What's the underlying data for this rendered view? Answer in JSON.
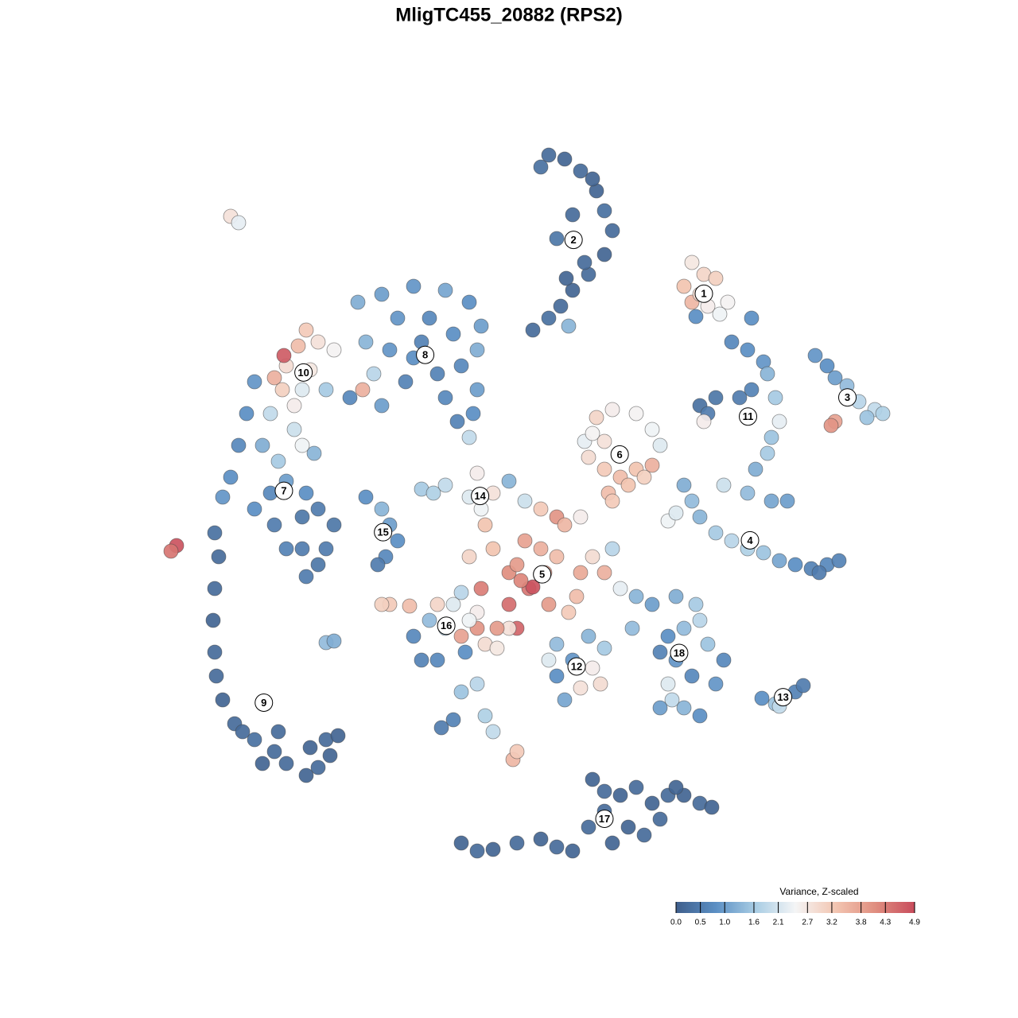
{
  "chart_data": {
    "type": "scatter",
    "title": "MligTC455_20882 (RPS2)",
    "colorbar_title": "Variance, Z-scaled",
    "clim": [
      0,
      4.9
    ],
    "cticks": [
      {
        "value": 0,
        "label": "0.0"
      },
      0.5,
      {
        "value": 1,
        "label": "1.0"
      },
      1.6,
      2.1,
      2.7,
      3.2,
      3.8,
      4.3,
      4.9
    ],
    "colorscale": [
      "#3f5f8c",
      "#5b8fc4",
      "#a9cde4",
      "#f4f5f6",
      "#f3c6b2",
      "#e08f80",
      "#c84c5c"
    ],
    "series": [
      {
        "name": "1",
        "x": [
          870,
          885,
          860,
          890,
          915,
          870,
          880,
          900,
          875,
          905
        ],
        "y": [
          950,
          935,
          920,
          895,
          900,
          900,
          910,
          930,
          882,
          885
        ],
        "values": [
          2.7,
          3.0,
          3.3,
          2.6,
          2.5,
          3.5,
          2.9,
          3.1,
          0.8,
          2.4
        ]
      },
      {
        "name": "2",
        "x": [
          690,
          710,
          730,
          750,
          760,
          770,
          760,
          740,
          720,
          705,
          690,
          670,
          715,
          700,
          720,
          680,
          745,
          735,
          712
        ],
        "y": [
          1085,
          1080,
          1065,
          1040,
          1015,
          990,
          960,
          935,
          915,
          895,
          880,
          865,
          870,
          980,
          1010,
          1070,
          1055,
          950,
          930
        ],
        "values": [
          0.2,
          0.1,
          0.2,
          0.1,
          0.3,
          0.2,
          0.1,
          0.2,
          0.1,
          0.2,
          0.3,
          0.2,
          1.3,
          0.4,
          0.2,
          0.3,
          0.1,
          0.2,
          0.1
        ]
      },
      {
        "name": "3",
        "x": [
          1025,
          1040,
          1050,
          1065,
          1080,
          1100,
          1110,
          1090,
          1050,
          1045
        ],
        "y": [
          833,
          820,
          805,
          795,
          775,
          765,
          760,
          755,
          750,
          745
        ],
        "values": [
          0.9,
          0.8,
          1.0,
          1.4,
          1.8,
          1.9,
          1.7,
          1.5,
          3.8,
          4.0
        ]
      },
      {
        "name": "4",
        "x": [
          860,
          870,
          880,
          900,
          920,
          940,
          960,
          980,
          1000,
          1020,
          1040,
          1055,
          840,
          850,
          1030
        ],
        "y": [
          670,
          650,
          630,
          610,
          600,
          590,
          585,
          575,
          570,
          565,
          570,
          575,
          625,
          635,
          560
        ],
        "values": [
          1.2,
          1.4,
          1.3,
          1.6,
          1.8,
          1.7,
          1.5,
          1.1,
          0.8,
          0.6,
          0.7,
          0.6,
          2.4,
          2.2,
          0.5
        ]
      },
      {
        "name": "5",
        "x": [
          660,
          680,
          700,
          640,
          665,
          690,
          715,
          730,
          745,
          700,
          710,
          620,
          650,
          670,
          640,
          605,
          590,
          760,
          780,
          725,
          655,
          685,
          730,
          770,
          650,
          600,
          640
        ],
        "y": [
          600,
          590,
          580,
          560,
          540,
          520,
          510,
          560,
          580,
          630,
          620,
          590,
          570,
          542,
          520,
          540,
          580,
          560,
          540,
          530,
          550,
          560,
          630,
          590,
          490,
          490,
          490
        ],
        "values": [
          3.8,
          3.6,
          3.4,
          4.1,
          4.4,
          3.9,
          3.2,
          3.7,
          2.9,
          4.0,
          3.5,
          3.3,
          3.9,
          4.8,
          4.5,
          4.3,
          3.0,
          3.6,
          2.3,
          3.4,
          4.2,
          3.8,
          2.6,
          1.8,
          4.6,
          4.0,
          2.8
        ]
      },
      {
        "name": "6",
        "x": [
          750,
          770,
          800,
          820,
          830,
          800,
          780,
          760,
          740,
          735,
          760,
          780,
          810,
          820,
          765,
          770,
          790,
          745
        ],
        "y": [
          755,
          765,
          760,
          740,
          720,
          690,
          680,
          690,
          705,
          725,
          725,
          710,
          680,
          695,
          660,
          650,
          670,
          735
        ],
        "values": [
          3.0,
          2.6,
          2.5,
          2.4,
          2.2,
          3.3,
          3.4,
          3.2,
          2.9,
          2.3,
          2.8,
          3.5,
          3.1,
          3.6,
          3.4,
          3.2,
          3.3,
          2.5
        ]
      },
      {
        "name": "7",
        "x": [
          320,
          310,
          300,
          290,
          280,
          330,
          350,
          380,
          360,
          395,
          385,
          340,
          320,
          370,
          345,
          380,
          400,
          420,
          380,
          400,
          385,
          360,
          410
        ],
        "y": [
          800,
          760,
          720,
          680,
          655,
          720,
          700,
          720,
          675,
          710,
          660,
          660,
          640,
          740,
          620,
          630,
          640,
          620,
          590,
          570,
          555,
          590,
          590
        ],
        "values": [
          0.9,
          0.8,
          0.7,
          0.8,
          0.9,
          1.2,
          1.6,
          2.4,
          1.0,
          1.3,
          0.8,
          0.7,
          0.8,
          2.0,
          0.5,
          0.4,
          0.5,
          0.4,
          0.5,
          0.4,
          0.5,
          0.6,
          0.5
        ]
      },
      {
        "name": "8",
        "x": [
          450,
          480,
          520,
          560,
          590,
          605,
          600,
          580,
          550,
          520,
          490,
          460,
          500,
          540,
          570,
          510,
          560,
          595,
          575,
          600,
          470,
          440,
          480,
          530,
          590
        ],
        "y": [
          900,
          910,
          920,
          915,
          900,
          870,
          840,
          820,
          810,
          830,
          840,
          850,
          880,
          880,
          860,
          800,
          780,
          760,
          750,
          790,
          810,
          780,
          770,
          850,
          730
        ],
        "values": [
          1.2,
          1.0,
          0.9,
          1.1,
          0.8,
          1.0,
          1.2,
          0.7,
          0.6,
          0.8,
          0.9,
          1.3,
          0.9,
          0.7,
          0.8,
          0.6,
          0.7,
          0.8,
          0.6,
          1.0,
          1.8,
          0.7,
          1.0,
          0.6,
          1.9
        ]
      },
      {
        "name": "9",
        "x": [
          270,
          275,
          270,
          268,
          270,
          272,
          280,
          295,
          320,
          345,
          330,
          360,
          390,
          410,
          425,
          400,
          385,
          350,
          305,
          415
        ],
        "y": [
          610,
          580,
          540,
          500,
          460,
          430,
          400,
          370,
          350,
          335,
          320,
          320,
          340,
          350,
          355,
          315,
          305,
          360,
          360,
          330
        ],
        "values": [
          0.3,
          0.2,
          0.2,
          0.1,
          0.2,
          0.2,
          0.1,
          0.2,
          0.3,
          0.2,
          0.1,
          0.2,
          0.1,
          0.2,
          0.1,
          0.2,
          0.1,
          0.2,
          0.2,
          0.1
        ]
      },
      {
        "name": "10",
        "x": [
          385,
          375,
          360,
          345,
          357,
          370,
          400,
          420,
          390,
          355,
          410,
          380,
          340,
          456
        ],
        "y": [
          865,
          845,
          820,
          805,
          833,
          770,
          850,
          840,
          815,
          790,
          790,
          790,
          760,
          790
        ],
        "values": [
          3.2,
          3.4,
          2.9,
          3.6,
          4.7,
          2.6,
          2.8,
          2.5,
          2.7,
          3.1,
          1.6,
          2.2,
          1.9,
          3.6
        ]
      },
      {
        "name": "11",
        "x": [
          920,
          940,
          960,
          965,
          945,
          930,
          900,
          880,
          890,
          975,
          980,
          970,
          965,
          950,
          940,
          910,
          970,
          990,
          885,
          945
        ],
        "y": [
          850,
          840,
          825,
          810,
          790,
          780,
          780,
          770,
          760,
          780,
          750,
          730,
          710,
          690,
          660,
          670,
          650,
          650,
          750,
          880
        ],
        "values": [
          0.7,
          0.8,
          0.9,
          1.3,
          0.6,
          0.5,
          0.4,
          0.3,
          0.5,
          1.6,
          2.3,
          1.5,
          1.6,
          1.2,
          1.4,
          2.0,
          1.1,
          1.0,
          2.6,
          0.8
        ]
      },
      {
        "name": "12",
        "x": [
          700,
          720,
          745,
          755,
          730,
          710,
          700,
          760,
          690,
          740
        ],
        "y": [
          470,
          450,
          440,
          420,
          415,
          400,
          430,
          465,
          450,
          480
        ],
        "values": [
          1.4,
          0.9,
          2.6,
          2.9,
          2.8,
          1.1,
          0.8,
          1.6,
          2.2,
          1.3
        ]
      },
      {
        "name": "13",
        "x": [
          958,
          975,
          1000,
          1010,
          980
        ],
        "y": [
          402,
          395,
          410,
          418,
          392
        ],
        "values": [
          0.8,
          1.5,
          0.6,
          0.5,
          1.9
        ]
      },
      {
        "name": "14",
        "x": [
          530,
          560,
          600,
          620,
          605,
          590,
          640,
          660,
          680,
          545,
          610
        ],
        "y": [
          665,
          670,
          685,
          660,
          640,
          655,
          675,
          650,
          640,
          660,
          620
        ],
        "values": [
          1.6,
          1.9,
          2.6,
          2.8,
          2.4,
          2.2,
          1.3,
          2.0,
          3.2,
          1.7,
          3.3
        ]
      },
      {
        "name": "15",
        "x": [
          460,
          480,
          490,
          500,
          485,
          475
        ],
        "y": [
          655,
          640,
          620,
          600,
          580,
          570
        ],
        "values": [
          0.8,
          1.3,
          1.0,
          0.8,
          0.7,
          0.5
        ]
      },
      {
        "name": "16",
        "x": [
          570,
          600,
          610,
          625,
          580,
          590,
          625,
          550,
          580,
          540,
          560,
          520,
          530,
          550,
          585,
          490,
          515,
          480
        ],
        "y": [
          520,
          510,
          470,
          465,
          480,
          500,
          490,
          520,
          535,
          500,
          490,
          480,
          450,
          450,
          460,
          520,
          518,
          520
        ],
        "values": [
          2.2,
          2.6,
          2.9,
          2.7,
          3.8,
          2.4,
          3.9,
          3.0,
          1.8,
          1.4,
          1.6,
          0.7,
          0.6,
          0.7,
          0.8,
          3.2,
          3.4,
          3.1
        ]
      },
      {
        "name": "17",
        "x": [
          580,
          600,
          620,
          650,
          680,
          700,
          720,
          740,
          745,
          760,
          780,
          800,
          820,
          840,
          860,
          880,
          895,
          760,
          790,
          830,
          850,
          810,
          770
        ],
        "y": [
          220,
          210,
          212,
          220,
          225,
          215,
          210,
          240,
          300,
          285,
          280,
          290,
          270,
          280,
          280,
          270,
          265,
          260,
          240,
          250,
          290,
          230,
          220
        ],
        "values": [
          0.1,
          0.2,
          0.1,
          0.2,
          0.1,
          0.2,
          0.1,
          0.2,
          0.1,
          0.2,
          0.1,
          0.2,
          0.1,
          0.2,
          0.1,
          0.2,
          0.1,
          0.2,
          0.1,
          0.2,
          0.1,
          0.2,
          0.1
        ]
      },
      {
        "name": "18",
        "x": [
          800,
          820,
          850,
          875,
          880,
          860,
          840,
          830,
          850,
          870,
          840,
          845,
          860,
          880,
          900,
          910,
          890,
          830,
          795
        ],
        "y": [
          530,
          520,
          530,
          520,
          500,
          490,
          480,
          460,
          450,
          430,
          420,
          400,
          390,
          380,
          420,
          450,
          470,
          390,
          490
        ],
        "values": [
          1.3,
          1.0,
          1.2,
          1.6,
          1.8,
          1.4,
          0.8,
          0.6,
          0.9,
          0.7,
          2.2,
          1.9,
          1.3,
          0.8,
          0.9,
          0.7,
          1.5,
          1.0,
          1.4
        ]
      },
      {
        "x": [
          290,
          300,
          222,
          215,
          410,
          420,
          580,
          600,
          610,
          620,
          555,
          570,
          645,
          650
        ],
        "y": [
          1008,
          1000,
          594,
          587,
          472,
          474,
          410,
          420,
          380,
          360,
          365,
          375,
          325,
          335
        ],
        "values": [
          2.8,
          2.3,
          4.8,
          4.4,
          1.4,
          1.2,
          1.5,
          1.8,
          1.7,
          1.9,
          0.5,
          0.6,
          3.5,
          3.2
        ]
      }
    ]
  }
}
